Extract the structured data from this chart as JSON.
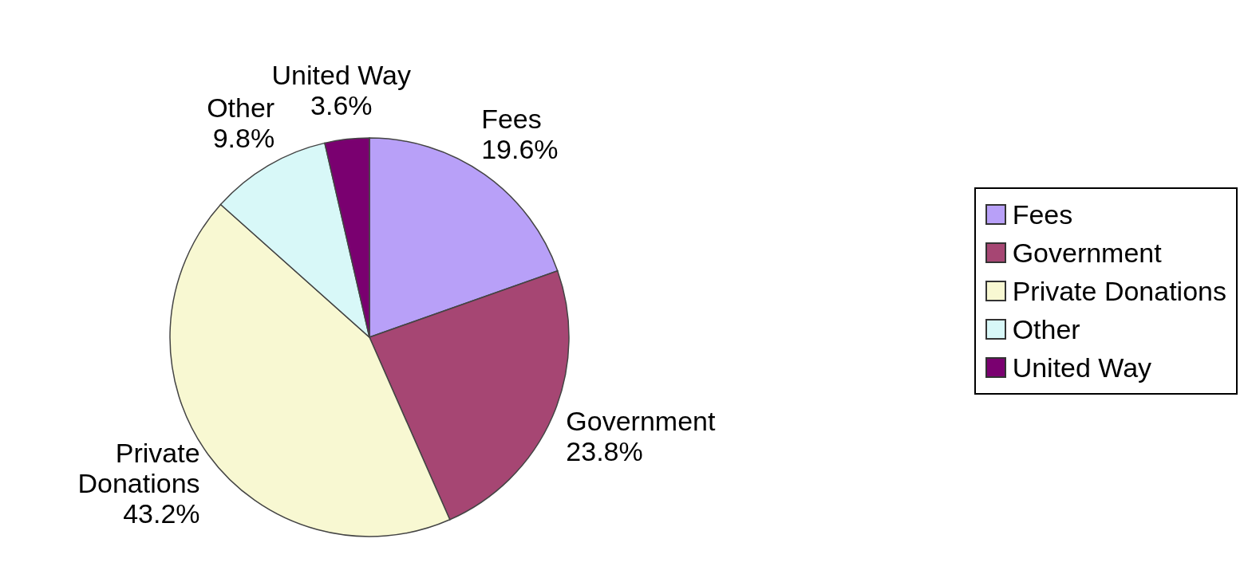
{
  "chart_data": {
    "type": "pie",
    "categories": [
      "Fees",
      "Government",
      "Private Donations",
      "Other",
      "United Way"
    ],
    "values": [
      19.6,
      23.8,
      43.2,
      9.8,
      3.6
    ],
    "value_labels": [
      "19.6%",
      "23.8%",
      "43.2%",
      "9.8%",
      "3.6%"
    ],
    "colors": [
      "#b8a0f8",
      "#a64673",
      "#f8f8d2",
      "#d8f8f8",
      "#7a0070"
    ],
    "legend": "right"
  }
}
